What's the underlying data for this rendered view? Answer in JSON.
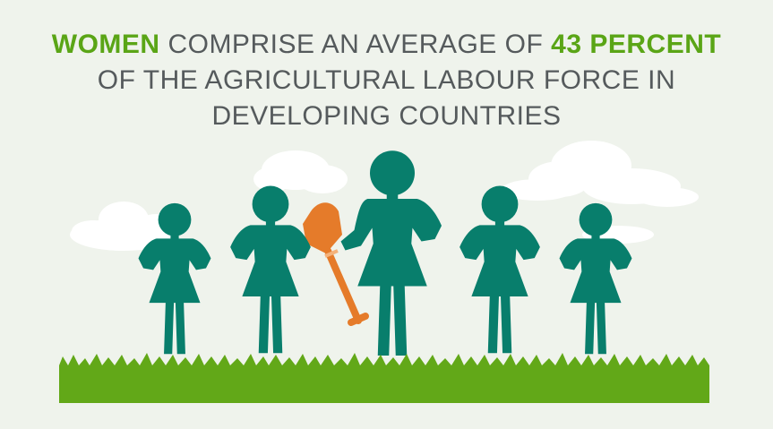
{
  "headline": {
    "line1_highlight_a": "WOMEN",
    "line1_mid": " COMPRISE AN AVERAGE OF ",
    "line1_highlight_b": "43 PERCENT",
    "line2": "OF THE AGRICULTURAL LABOUR FORCE IN",
    "line3": "DEVELOPING COUNTRIES"
  },
  "colors": {
    "background": "#eff3ec",
    "text": "#555a5c",
    "highlight": "#5aa516",
    "figure": "#087e6c",
    "grass": "#62a818",
    "shovel": "#e57b2a",
    "cloud": "#ffffff"
  },
  "illustration": {
    "figures": 5,
    "tool": "shovel-icon"
  }
}
